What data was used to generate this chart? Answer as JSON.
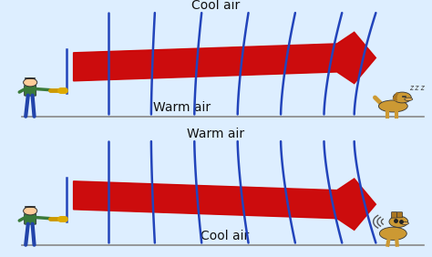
{
  "bg_color": "#ffffff",
  "panel_bg": "#f0f4ff",
  "arrow_color": "#cc0000",
  "wave_color": "#2244bb",
  "ground_color": "#888888",
  "text_color": "#111111",
  "figure_bg": "#ddeeff",
  "top_label_top": "Cool air",
  "top_label_bottom": "Warm air",
  "bot_label_top": "Warm air",
  "bot_label_bottom": "Cool air",
  "person_green": "#3a7a3a",
  "person_blue": "#2244aa",
  "person_skin": "#ffcc99",
  "dog_body": "#cc9933",
  "dog_dark": "#aa7722"
}
